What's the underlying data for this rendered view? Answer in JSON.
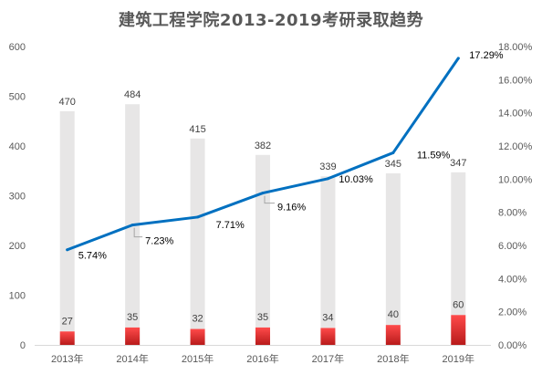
{
  "chart_data": {
    "type": "bar",
    "title": "建筑工程学院2013-2019考研录取趋势",
    "categories": [
      "2013年",
      "2014年",
      "2015年",
      "2016年",
      "2017年",
      "2018年",
      "2019年"
    ],
    "series": [
      {
        "kind": "bar",
        "axis": "left",
        "color": "#e7e6e6",
        "values": [
          470,
          484,
          415,
          382,
          339,
          345,
          347
        ]
      },
      {
        "kind": "bar",
        "axis": "left",
        "color": "#e3342f",
        "values": [
          27,
          35,
          32,
          35,
          34,
          40,
          60
        ]
      },
      {
        "kind": "line",
        "axis": "right",
        "color": "#0070c0",
        "values": [
          0.0574,
          0.0723,
          0.0771,
          0.0916,
          0.1003,
          0.1159,
          0.1729
        ],
        "labels": [
          "5.74%",
          "7.23%",
          "7.71%",
          "9.16%",
          "10.03%",
          "11.59%",
          "17.29%"
        ]
      }
    ],
    "y_left": {
      "min": 0,
      "max": 600,
      "ticks": [
        0,
        100,
        200,
        300,
        400,
        500,
        600
      ],
      "tick_labels": [
        "0",
        "100",
        "200",
        "300",
        "400",
        "500",
        "600"
      ]
    },
    "y_right": {
      "min": 0,
      "max": 0.18,
      "ticks": [
        0,
        0.02,
        0.04,
        0.06,
        0.08,
        0.1,
        0.12,
        0.14,
        0.16,
        0.18
      ],
      "tick_labels": [
        "0.00%",
        "2.00%",
        "4.00%",
        "6.00%",
        "8.00%",
        "10.00%",
        "12.00%",
        "14.00%",
        "16.00%",
        "18.00%"
      ]
    },
    "grid": false,
    "legend": "none"
  }
}
